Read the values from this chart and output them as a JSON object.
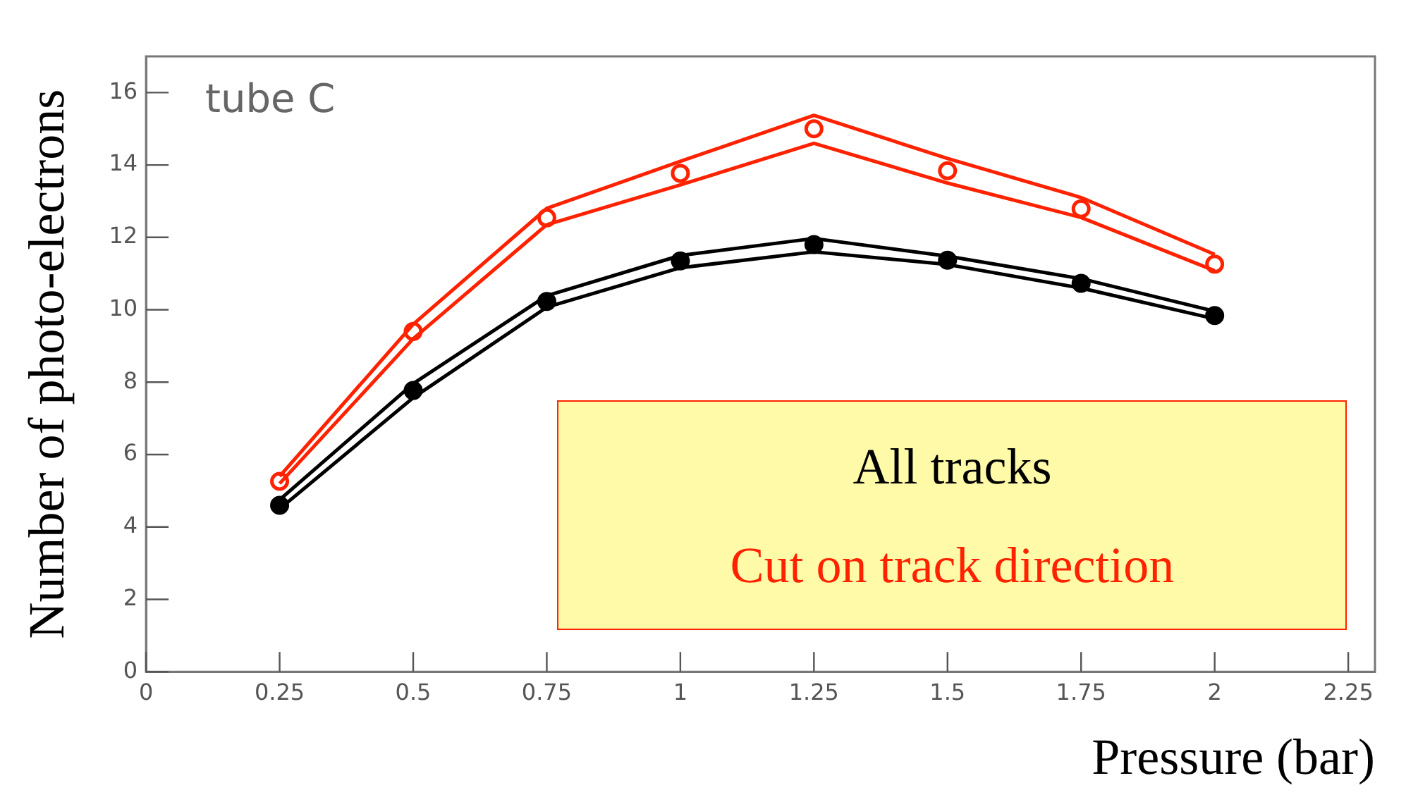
{
  "chart_data": {
    "type": "scatter",
    "xlabel": "Pressure (bar)",
    "ylabel": "Number of photo-electrons",
    "annotations": [
      "tube C"
    ],
    "x": [
      0.25,
      0.5,
      0.75,
      1,
      1.25,
      1.5,
      1.75,
      2
    ],
    "series": [
      {
        "type": "line",
        "color": "#000000",
        "marker": "none",
        "values": [
          4.75,
          7.96,
          10.39,
          11.5,
          11.97,
          11.48,
          10.86,
          9.96
        ]
      },
      {
        "type": "line",
        "color": "#000000",
        "marker": "none",
        "values": [
          4.5,
          7.57,
          10.07,
          11.16,
          11.6,
          11.25,
          10.6,
          9.75
        ]
      },
      {
        "name": "All tracks",
        "color": "#000000",
        "marker": "circle",
        "values": [
          4.6,
          7.77,
          10.23,
          11.35,
          11.8,
          11.37,
          10.73,
          9.84
        ]
      },
      {
        "type": "line",
        "color": "#ff2200",
        "marker": "none",
        "values": [
          5.4,
          9.6,
          12.8,
          14.1,
          15.37,
          14.18,
          13.1,
          11.53
        ]
      },
      {
        "type": "line",
        "color": "#ff2200",
        "marker": "none",
        "values": [
          5.2,
          9.2,
          12.35,
          13.45,
          14.6,
          13.5,
          12.55,
          11.08
        ]
      },
      {
        "name": "Cut on track direction",
        "color": "#ff2200",
        "marker": "circle",
        "values": [
          5.26,
          9.4,
          12.54,
          13.77,
          15.0,
          13.84,
          12.79,
          11.26
        ]
      }
    ],
    "xlim": [
      0,
      2.3
    ],
    "ylim": [
      0,
      17
    ],
    "xticks": [
      0,
      0.25,
      0.5,
      0.75,
      1,
      1.25,
      1.5,
      1.75,
      2,
      2.25
    ],
    "yticks": [
      0,
      2,
      4,
      6,
      8,
      10,
      12,
      14,
      16
    ],
    "grid": false
  }
}
